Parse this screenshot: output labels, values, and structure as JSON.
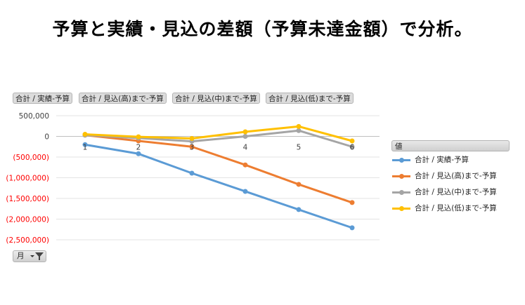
{
  "title": "予算と実績・見込の差額（予算未達金額）で分析。",
  "field_buttons": [
    "合計 / 実績-予算",
    "合計 / 見込(高)まで-予算",
    "合計 / 見込(中)まで-予算",
    "合計 / 見込(低)まで-予算"
  ],
  "legend": {
    "header": "値",
    "items": [
      "合計 / 実績-予算",
      "合計 / 見込(高)まで-予算",
      "合計 / 見込(中)まで-予算",
      "合計 / 見込(低)まで-予算"
    ]
  },
  "axis_filter": {
    "label": "月"
  },
  "colors": {
    "series": [
      "#5b9bd5",
      "#ed7d31",
      "#a5a5a5",
      "#ffc000"
    ],
    "negative_tick": "#ff0000",
    "positive_tick": "#404040"
  },
  "chart_data": {
    "type": "line",
    "title": "",
    "xlabel": "",
    "ylabel": "",
    "categories": [
      "1",
      "2",
      "3",
      "4",
      "5",
      "6"
    ],
    "ylim": [
      -2500000,
      500000
    ],
    "y_ticks": [
      500000,
      0,
      -500000,
      -1000000,
      -1500000,
      -2000000,
      -2500000
    ],
    "y_tick_labels": [
      "500,000",
      "0",
      "(500,000)",
      "(1,000,000)",
      "(1,500,000)",
      "(2,000,000)",
      "(2,500,000)"
    ],
    "grid": true,
    "legend_position": "right",
    "series": [
      {
        "name": "合計 / 実績-予算",
        "values": [
          -200000,
          -420000,
          -890000,
          -1330000,
          -1770000,
          -2210000
        ]
      },
      {
        "name": "合計 / 見込(高)まで-予算",
        "values": [
          30000,
          -110000,
          -250000,
          -690000,
          -1160000,
          -1600000
        ]
      },
      {
        "name": "合計 / 見込(中)まで-予算",
        "values": [
          30000,
          -40000,
          -120000,
          0,
          140000,
          -250000
        ]
      },
      {
        "name": "合計 / 見込(低)まで-予算",
        "values": [
          50000,
          -10000,
          -50000,
          110000,
          240000,
          -110000
        ]
      }
    ]
  }
}
